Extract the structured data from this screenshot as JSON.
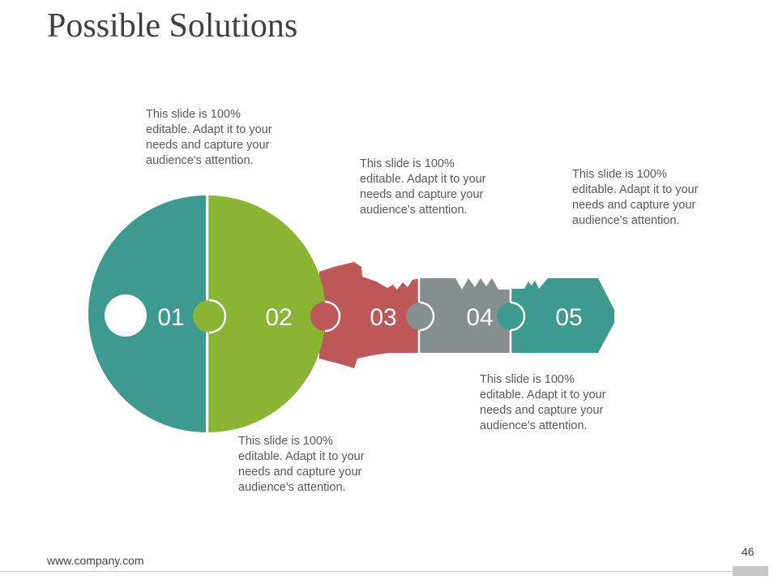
{
  "slide": {
    "title": "Possible Solutions",
    "footer_url": "www.company.com",
    "page_number": "46"
  },
  "key_segments": [
    {
      "label": "01",
      "color": "#3d9a8f"
    },
    {
      "label": "02",
      "color": "#8ab534"
    },
    {
      "label": "03",
      "color": "#be5858"
    },
    {
      "label": "04",
      "color": "#868e8f"
    },
    {
      "label": "05",
      "color": "#3d9a8f"
    }
  ],
  "notes": [
    "This slide is 100% editable. Adapt it to your needs and capture your audience's attention.",
    "This slide is 100% editable. Adapt it to your needs and capture your audience's attention.",
    "This slide is 100% editable. Adapt it to your needs and capture your audience's attention.",
    "This slide is 100% editable. Adapt it to your needs and capture your audience's attention.",
    "This slide is 100% editable. Adapt it to your needs and capture your audience's attention."
  ]
}
